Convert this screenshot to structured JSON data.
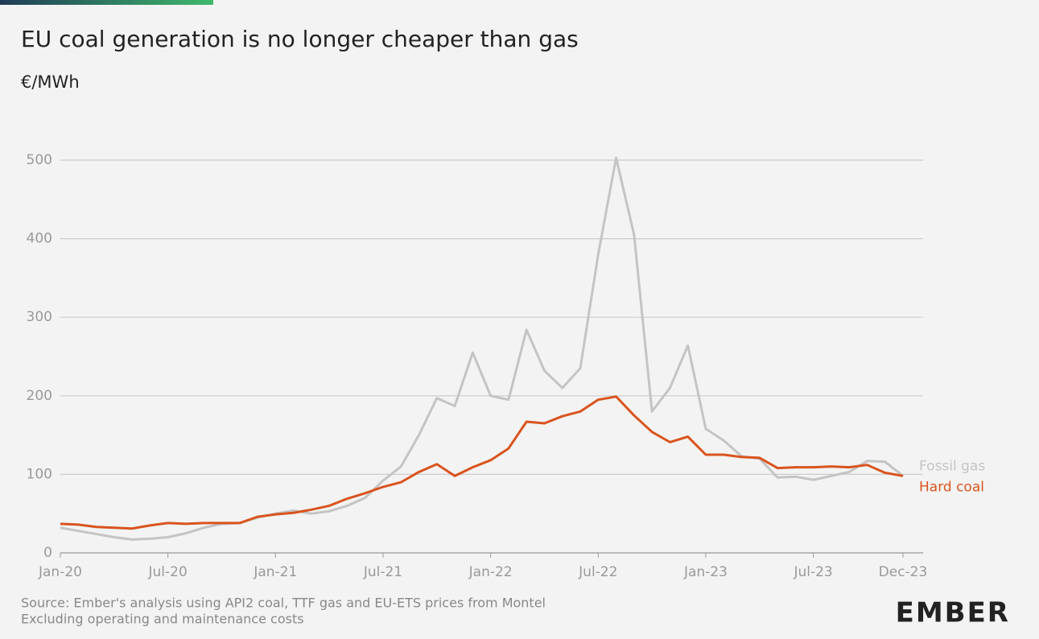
{
  "chart_data": {
    "type": "line",
    "title": "EU coal generation is no longer cheaper than gas",
    "subtitle": "€/MWh",
    "categories": [
      "Jan-20",
      null,
      null,
      null,
      null,
      null,
      "Jul-20",
      null,
      null,
      null,
      null,
      null,
      "Jan-21",
      null,
      null,
      null,
      null,
      null,
      "Jul-21",
      null,
      null,
      null,
      null,
      null,
      "Jan-22",
      null,
      null,
      null,
      null,
      null,
      "Jul-22",
      null,
      null,
      null,
      null,
      null,
      "Jan-23",
      null,
      null,
      null,
      null,
      null,
      "Jul-23",
      null,
      null,
      null,
      null,
      "Dec-23"
    ],
    "series": [
      {
        "name": "Fossil gas",
        "color": "#c4c4c4",
        "values": [
          32,
          28,
          24,
          20,
          17,
          18,
          20,
          25,
          32,
          37,
          38,
          45,
          50,
          54,
          50,
          53,
          60,
          70,
          92,
          110,
          150,
          197,
          187,
          255,
          200,
          195,
          284,
          232,
          210,
          235,
          380,
          503,
          405,
          180,
          210,
          264,
          158,
          143,
          123,
          120,
          96,
          97,
          93,
          98,
          103,
          117,
          116,
          98
        ]
      },
      {
        "name": "Hard coal",
        "color": "#d9541e",
        "values": [
          37,
          36,
          33,
          32,
          31,
          35,
          38,
          37,
          38,
          38,
          38,
          46,
          49,
          51,
          55,
          60,
          69,
          76,
          84,
          90,
          103,
          113,
          98,
          109,
          118,
          133,
          167,
          165,
          174,
          180,
          195,
          199,
          175,
          154,
          141,
          148,
          125,
          125,
          122,
          121,
          108,
          109,
          109,
          110,
          109,
          112,
          102,
          98
        ]
      }
    ],
    "ylim": [
      0,
      500
    ],
    "yticks": [
      0,
      100,
      200,
      300,
      400,
      500
    ],
    "grid": true,
    "source": "Source: Ember's analysis using API2 coal, TTF gas and EU-ETS prices from Montel",
    "note": "Excluding operating and maintenance costs",
    "logo": "EMBER"
  }
}
